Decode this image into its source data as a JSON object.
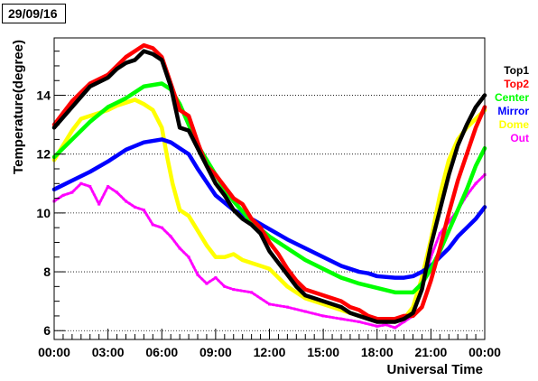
{
  "date_label": "29/09/16",
  "chart_data": {
    "type": "scatter",
    "xlabel": "Universal Time",
    "ylabel": "Temperature(degree)",
    "xlim": [
      0,
      24
    ],
    "ylim": [
      5.7,
      15.95
    ],
    "x_ticks": [
      "00:00",
      "03:00",
      "06:00",
      "09:00",
      "12:00",
      "15:00",
      "18:00",
      "21:00",
      "00:00"
    ],
    "y_ticks": [
      6,
      8,
      10,
      12,
      14
    ],
    "grid": "horizontal dotted",
    "legend_position": "right",
    "series": [
      {
        "name": "Top1",
        "color": "#000000",
        "x": [
          0,
          1,
          2,
          3,
          3.5,
          4,
          4.5,
          5,
          5.5,
          6,
          6.5,
          7,
          7.5,
          8,
          8.5,
          9,
          9.5,
          10,
          10.5,
          11,
          11.5,
          12,
          12.5,
          13,
          13.5,
          14,
          15,
          16,
          16.5,
          17,
          17.5,
          18,
          18.5,
          19,
          19.5,
          20,
          20.5,
          21,
          21.5,
          22,
          22.5,
          23,
          23.5,
          24
        ],
        "y": [
          12.9,
          13.6,
          14.3,
          14.6,
          14.9,
          15.1,
          15.2,
          15.5,
          15.4,
          15.2,
          14.3,
          12.9,
          12.8,
          12.2,
          11.6,
          11.0,
          10.6,
          10.1,
          9.8,
          9.6,
          9.3,
          8.7,
          8.3,
          7.9,
          7.5,
          7.2,
          7.0,
          6.8,
          6.6,
          6.5,
          6.4,
          6.3,
          6.3,
          6.3,
          6.4,
          6.6,
          7.4,
          8.9,
          10.1,
          11.3,
          12.3,
          13.0,
          13.6,
          14.0
        ]
      },
      {
        "name": "Top2",
        "color": "#ff0000",
        "x": [
          0,
          1,
          2,
          3,
          3.5,
          4,
          4.5,
          5,
          5.5,
          6,
          6.5,
          7,
          7.5,
          8,
          8.5,
          9,
          9.5,
          10,
          10.5,
          11,
          11.5,
          12,
          12.5,
          13,
          13.5,
          14,
          15,
          16,
          16.5,
          17,
          17.5,
          18,
          18.5,
          19,
          19.5,
          20,
          20.5,
          21,
          21.5,
          22,
          22.5,
          23,
          23.5,
          24
        ],
        "y": [
          13.0,
          13.8,
          14.4,
          14.7,
          15.0,
          15.3,
          15.5,
          15.7,
          15.6,
          15.3,
          14.4,
          13.5,
          13.3,
          12.4,
          11.6,
          11.3,
          10.9,
          10.5,
          10.3,
          9.8,
          9.5,
          9.0,
          8.6,
          8.1,
          7.7,
          7.4,
          7.2,
          7.0,
          6.8,
          6.7,
          6.5,
          6.4,
          6.4,
          6.4,
          6.5,
          6.5,
          6.8,
          7.7,
          8.8,
          10.0,
          11.1,
          12.0,
          12.9,
          13.6
        ]
      },
      {
        "name": "Center",
        "color": "#00ff00",
        "x": [
          0,
          1,
          2,
          3,
          4,
          5,
          6,
          6.5,
          7,
          7.5,
          8,
          8.5,
          9,
          9.5,
          10,
          11,
          12,
          13,
          14,
          15,
          16,
          17,
          18,
          19,
          19.5,
          20,
          20.5,
          21,
          21.5,
          22,
          22.5,
          23,
          23.5,
          24
        ],
        "y": [
          11.9,
          12.5,
          13.1,
          13.6,
          13.9,
          14.3,
          14.4,
          14.2,
          13.7,
          13.0,
          12.3,
          11.8,
          11.3,
          10.8,
          10.4,
          9.7,
          9.2,
          8.8,
          8.4,
          8.1,
          7.8,
          7.6,
          7.45,
          7.3,
          7.3,
          7.3,
          7.6,
          8.1,
          8.7,
          9.4,
          10.1,
          10.8,
          11.6,
          12.2
        ]
      },
      {
        "name": "Mirror",
        "color": "#0000ff",
        "x": [
          0,
          1,
          2,
          3,
          4,
          5,
          6,
          6.5,
          7,
          7.5,
          8,
          9,
          10,
          11,
          12,
          13,
          14,
          15,
          16,
          17,
          17.5,
          18,
          19,
          19.5,
          20,
          20.5,
          21,
          21.5,
          22,
          22.5,
          23,
          23.5,
          24
        ],
        "y": [
          10.8,
          11.1,
          11.4,
          11.75,
          12.15,
          12.4,
          12.5,
          12.4,
          12.2,
          12.0,
          11.5,
          10.6,
          10.1,
          9.8,
          9.45,
          9.1,
          8.8,
          8.5,
          8.2,
          8.0,
          7.95,
          7.85,
          7.8,
          7.8,
          7.85,
          8.0,
          8.2,
          8.5,
          8.8,
          9.2,
          9.5,
          9.8,
          10.2
        ]
      },
      {
        "name": "Dome",
        "color": "#ffff00",
        "x": [
          0,
          0.5,
          1,
          1.5,
          2,
          2.5,
          3,
          3.5,
          4,
          4.5,
          5,
          5.5,
          6,
          6.3,
          6.6,
          7,
          7.5,
          8,
          8.5,
          9,
          9.5,
          10,
          10.5,
          11,
          11.5,
          12,
          12.5,
          13,
          13.5,
          14,
          15,
          16,
          17,
          18,
          19,
          19.5,
          20,
          20.5,
          21,
          21.5,
          22,
          22.5,
          23,
          23.5,
          24
        ],
        "y": [
          11.8,
          12.3,
          12.8,
          13.2,
          13.3,
          13.4,
          13.5,
          13.65,
          13.75,
          13.85,
          13.7,
          13.5,
          12.9,
          11.9,
          11.0,
          10.1,
          9.9,
          9.4,
          8.9,
          8.5,
          8.5,
          8.6,
          8.4,
          8.3,
          8.2,
          8.1,
          7.8,
          7.5,
          7.3,
          7.1,
          6.9,
          6.7,
          6.5,
          6.4,
          6.3,
          6.4,
          6.8,
          7.8,
          9.1,
          10.6,
          11.8,
          12.5,
          12.9,
          13.2,
          13.5
        ]
      },
      {
        "name": "Out",
        "color": "#ff00ff",
        "x": [
          0,
          0.5,
          1,
          1.5,
          2,
          2.5,
          3,
          3.5,
          4,
          4.5,
          5,
          5.5,
          6,
          6.5,
          7,
          7.5,
          8,
          8.5,
          9,
          9.5,
          10,
          11,
          12,
          13,
          14,
          15,
          16,
          17,
          18,
          18.5,
          19,
          19.5,
          20,
          20.5,
          21,
          21.5,
          22,
          22.5,
          23,
          23.5,
          24
        ],
        "y": [
          10.4,
          10.6,
          10.7,
          11.0,
          10.9,
          10.3,
          10.9,
          10.7,
          10.4,
          10.2,
          10.1,
          9.6,
          9.5,
          9.2,
          8.8,
          8.5,
          7.9,
          7.6,
          7.8,
          7.5,
          7.4,
          7.3,
          6.9,
          6.8,
          6.65,
          6.5,
          6.4,
          6.3,
          6.15,
          6.2,
          6.1,
          6.3,
          6.5,
          7.5,
          8.5,
          9.3,
          9.7,
          10.1,
          10.6,
          11.0,
          11.3
        ]
      }
    ]
  }
}
